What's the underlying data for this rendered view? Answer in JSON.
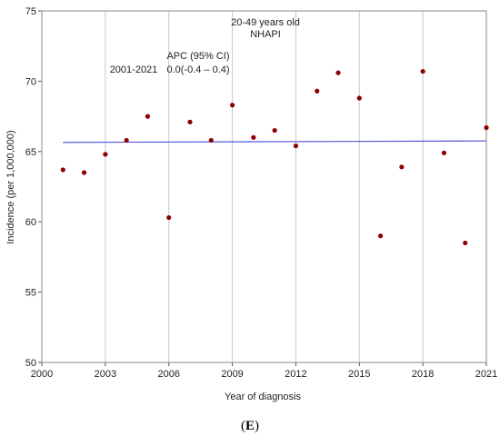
{
  "chart_data": {
    "type": "scatter",
    "title": "20-49 years old",
    "subtitle": "NHAPI",
    "xlabel": "Year of diagnosis",
    "ylabel": "Incidence (per 1,000,000)",
    "xlim": [
      2000,
      2021
    ],
    "ylim": [
      50,
      75
    ],
    "xticks": [
      2000,
      2003,
      2006,
      2009,
      2012,
      2015,
      2018,
      2021
    ],
    "yticks": [
      50,
      55,
      60,
      65,
      70,
      75
    ],
    "grid": "vertical",
    "series": [
      {
        "color": "#8b0000",
        "x": [
          2001,
          2002,
          2003,
          2004,
          2005,
          2006,
          2007,
          2008,
          2009,
          2010,
          2011,
          2012,
          2013,
          2014,
          2015,
          2016,
          2017,
          2018,
          2019,
          2020,
          2021
        ],
        "y": [
          63.7,
          63.5,
          64.8,
          65.8,
          67.5,
          60.3,
          67.1,
          65.8,
          68.3,
          66.0,
          66.5,
          65.4,
          69.3,
          70.6,
          68.8,
          59.0,
          63.9,
          70.7,
          64.9,
          58.5,
          66.7
        ]
      }
    ],
    "trend": {
      "color": "#5555dd",
      "x": [
        2001,
        2021
      ],
      "y": [
        65.65,
        65.75
      ]
    },
    "annotations": {
      "period": "2001-2021",
      "apc_header": "APC (95% CI)",
      "apc_value": "0.0(-0.4 – 0.4)"
    }
  },
  "panel_label": "(E)",
  "panel_letter": "E"
}
